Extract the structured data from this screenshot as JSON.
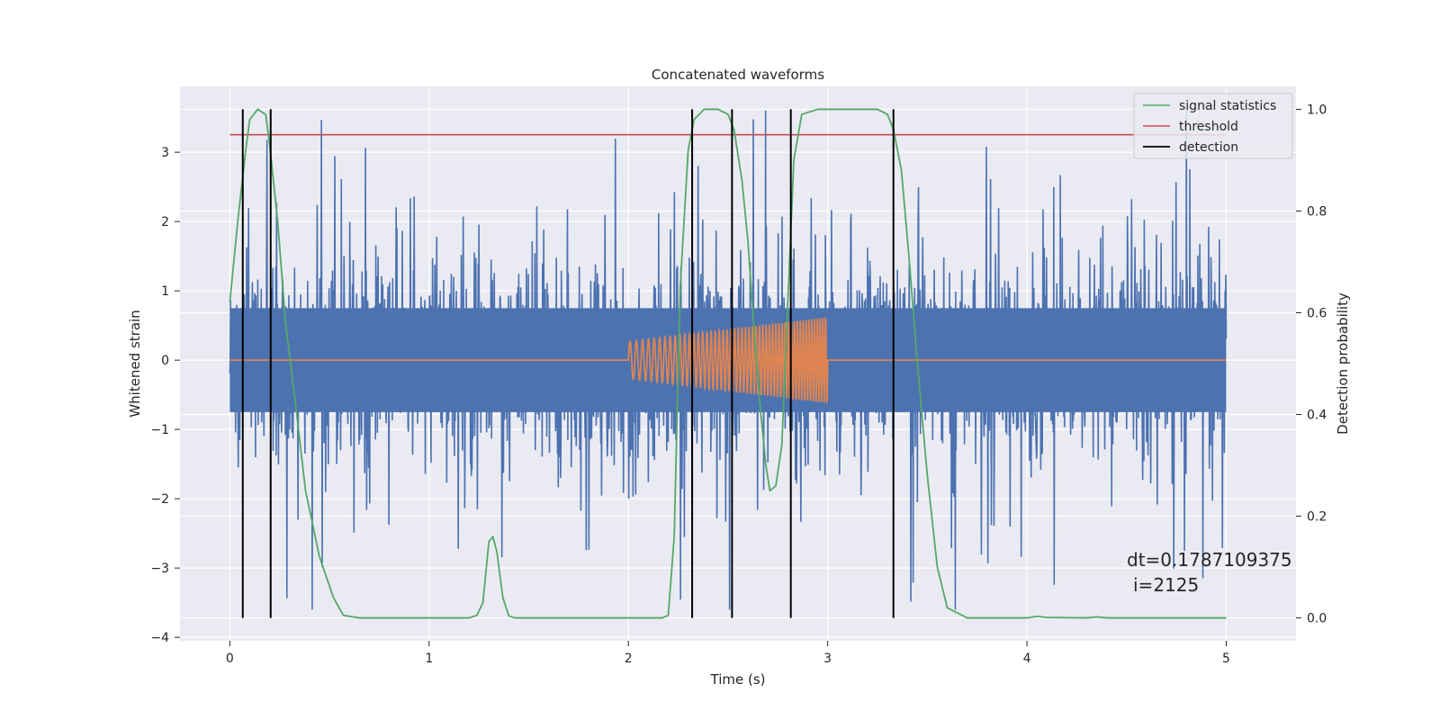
{
  "chart_data": {
    "type": "line",
    "title": "Concatenated waveforms",
    "xlabel": "Time (s)",
    "ylabel": "Whitened strain",
    "y2label": "Detection probability",
    "xlim": [
      -0.25,
      5.35
    ],
    "ylim": [
      -4.05,
      3.95
    ],
    "y2lim": [
      -0.045,
      1.045
    ],
    "xticks": [
      0,
      1,
      2,
      3,
      4,
      5
    ],
    "xtick_labels": [
      "0",
      "1",
      "2",
      "3",
      "4",
      "5"
    ],
    "yticks": [
      -4,
      -3,
      -2,
      -1,
      0,
      1,
      2,
      3
    ],
    "ytick_labels": [
      "−4",
      "−3",
      "−2",
      "−1",
      "0",
      "1",
      "2",
      "3"
    ],
    "y2ticks": [
      0.0,
      0.2,
      0.4,
      0.6,
      0.8,
      1.0
    ],
    "y2tick_labels": [
      "0.0",
      "0.2",
      "0.4",
      "0.6",
      "0.8",
      "1.0"
    ],
    "grid": true,
    "legend_position": "top-right",
    "colors": {
      "strain": "#4c72b0",
      "injection": "#dd8452",
      "signal_statistics": "#55a868",
      "threshold": "#c44e52",
      "detection": "#000000",
      "plot_background": "#eaeaf2"
    },
    "series": [
      {
        "name": "signal statistics",
        "axis": "right",
        "x": [
          0.0,
          0.04,
          0.08,
          0.1,
          0.14,
          0.18,
          0.2,
          0.24,
          0.28,
          0.33,
          0.38,
          0.45,
          0.52,
          0.57,
          0.65,
          0.8,
          1.0,
          1.2,
          1.24,
          1.27,
          1.3,
          1.32,
          1.34,
          1.37,
          1.4,
          1.43,
          1.6,
          2.0,
          2.17,
          2.2,
          2.23,
          2.26,
          2.3,
          2.33,
          2.38,
          2.45,
          2.5,
          2.53,
          2.57,
          2.6,
          2.63,
          2.66,
          2.69,
          2.71,
          2.74,
          2.77,
          2.8,
          2.83,
          2.87,
          2.95,
          3.1,
          3.25,
          3.3,
          3.33,
          3.37,
          3.41,
          3.45,
          3.5,
          3.55,
          3.6,
          3.7,
          4.0,
          4.05,
          4.1,
          4.3,
          4.35,
          4.4,
          5.0
        ],
        "y": [
          0.62,
          0.78,
          0.92,
          0.98,
          1.0,
          0.99,
          0.93,
          0.78,
          0.58,
          0.42,
          0.25,
          0.12,
          0.04,
          0.005,
          0.0,
          0.0,
          0.0,
          0.0,
          0.005,
          0.03,
          0.15,
          0.16,
          0.13,
          0.04,
          0.004,
          0.0,
          0.0,
          0.0,
          0.0,
          0.005,
          0.16,
          0.65,
          0.92,
          0.98,
          1.0,
          1.0,
          0.99,
          0.96,
          0.86,
          0.74,
          0.57,
          0.42,
          0.3,
          0.25,
          0.26,
          0.34,
          0.62,
          0.9,
          0.99,
          1.0,
          1.0,
          1.0,
          0.99,
          0.96,
          0.88,
          0.7,
          0.5,
          0.28,
          0.1,
          0.02,
          0.0,
          0.0,
          0.003,
          0.001,
          0.0,
          0.002,
          0.0,
          0.0
        ]
      },
      {
        "name": "threshold",
        "axis": "right",
        "x": [
          0.0,
          5.0
        ],
        "y": [
          0.95,
          0.95
        ]
      },
      {
        "name": "detection",
        "axis": "right",
        "x": [
          0.065,
          0.205,
          2.32,
          2.52,
          2.815,
          3.33
        ],
        "y_range": [
          0.0,
          1.0
        ]
      }
    ],
    "strain": {
      "x_range": [
        0.0,
        5.0
      ],
      "dense_envelope": [
        -0.75,
        0.75
      ],
      "spike_range": [
        -3.6,
        3.6
      ]
    },
    "injection": {
      "x_range": [
        2.0,
        3.0
      ],
      "amplitude_start": 0.27,
      "amplitude_end": 0.62
    },
    "annotation": {
      "dt": "dt=0.1787109375",
      "i": "i=2125"
    }
  }
}
